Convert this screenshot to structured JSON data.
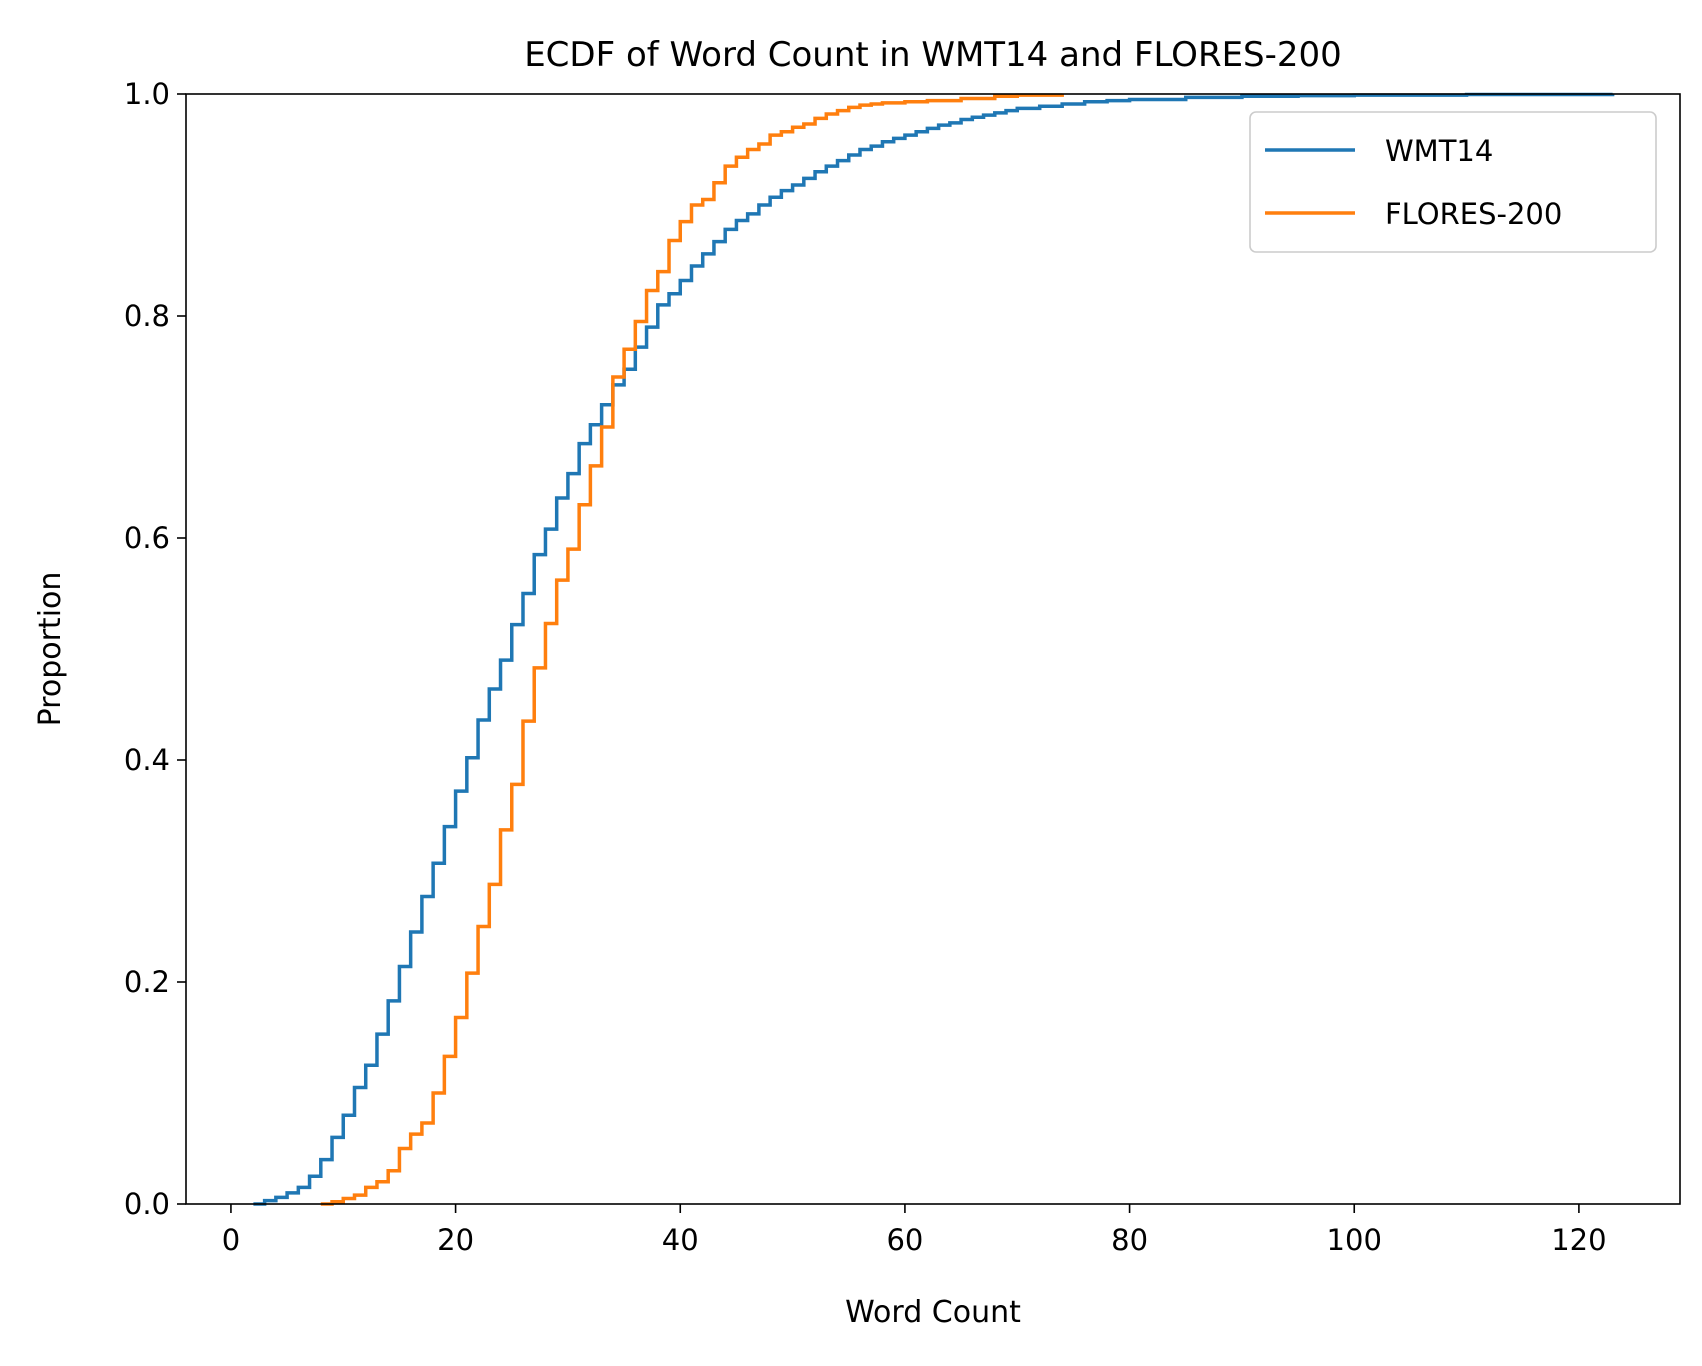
{
  "chart_data": {
    "type": "line",
    "title": "ECDF of Word Count in WMT14 and FLORES-200",
    "xlabel": "Word Count",
    "ylabel": "Proportion",
    "xlim": [
      -4,
      129
    ],
    "ylim": [
      0,
      1
    ],
    "xticks": [
      0,
      20,
      40,
      60,
      80,
      100,
      120
    ],
    "xtick_labels": [
      "0",
      "20",
      "40",
      "60",
      "80",
      "100",
      "120"
    ],
    "yticks": [
      0,
      0.2,
      0.4,
      0.6,
      0.8,
      1.0
    ],
    "ytick_labels": [
      "0.0",
      "0.2",
      "0.4",
      "0.6",
      "0.8",
      "1.0"
    ],
    "grid": false,
    "legend_position": "top-right",
    "series": [
      {
        "name": "WMT14",
        "color": "#1f77b4",
        "step": "post",
        "x": [
          2,
          3,
          4,
          5,
          6,
          7,
          8,
          9,
          10,
          11,
          12,
          13,
          14,
          15,
          16,
          17,
          18,
          19,
          20,
          21,
          22,
          23,
          24,
          25,
          26,
          27,
          28,
          29,
          30,
          31,
          32,
          33,
          34,
          35,
          36,
          37,
          38,
          39,
          40,
          41,
          42,
          43,
          44,
          45,
          46,
          47,
          48,
          49,
          50,
          51,
          52,
          53,
          54,
          55,
          56,
          57,
          58,
          59,
          60,
          61,
          62,
          63,
          64,
          65,
          66,
          67,
          68,
          69,
          70,
          72,
          74,
          76,
          78,
          80,
          85,
          90,
          95,
          100,
          110,
          123
        ],
        "y": [
          0.0,
          0.003,
          0.006,
          0.01,
          0.015,
          0.025,
          0.04,
          0.06,
          0.08,
          0.105,
          0.125,
          0.153,
          0.183,
          0.214,
          0.245,
          0.277,
          0.307,
          0.34,
          0.372,
          0.402,
          0.436,
          0.464,
          0.49,
          0.522,
          0.55,
          0.585,
          0.608,
          0.636,
          0.658,
          0.685,
          0.702,
          0.72,
          0.738,
          0.752,
          0.772,
          0.79,
          0.81,
          0.82,
          0.832,
          0.845,
          0.856,
          0.867,
          0.878,
          0.886,
          0.892,
          0.9,
          0.907,
          0.913,
          0.918,
          0.924,
          0.93,
          0.935,
          0.94,
          0.945,
          0.95,
          0.953,
          0.957,
          0.96,
          0.963,
          0.966,
          0.969,
          0.972,
          0.974,
          0.977,
          0.979,
          0.981,
          0.983,
          0.985,
          0.987,
          0.989,
          0.991,
          0.993,
          0.994,
          0.995,
          0.997,
          0.998,
          0.9985,
          0.999,
          0.9995,
          1.0
        ]
      },
      {
        "name": "FLORES-200",
        "color": "#ff7f0e",
        "step": "post",
        "x": [
          8,
          9,
          10,
          11,
          12,
          13,
          14,
          15,
          16,
          17,
          18,
          19,
          20,
          21,
          22,
          23,
          24,
          25,
          26,
          27,
          28,
          29,
          30,
          31,
          32,
          33,
          34,
          35,
          36,
          37,
          38,
          39,
          40,
          41,
          42,
          43,
          44,
          45,
          46,
          47,
          48,
          49,
          50,
          51,
          52,
          53,
          54,
          55,
          56,
          57,
          58,
          60,
          62,
          65,
          68,
          70,
          74
        ],
        "y": [
          0.0,
          0.002,
          0.005,
          0.008,
          0.015,
          0.02,
          0.03,
          0.05,
          0.063,
          0.073,
          0.1,
          0.133,
          0.168,
          0.208,
          0.25,
          0.288,
          0.337,
          0.378,
          0.435,
          0.483,
          0.523,
          0.562,
          0.59,
          0.63,
          0.665,
          0.7,
          0.745,
          0.77,
          0.795,
          0.823,
          0.84,
          0.868,
          0.885,
          0.9,
          0.905,
          0.92,
          0.935,
          0.943,
          0.95,
          0.955,
          0.963,
          0.966,
          0.97,
          0.973,
          0.978,
          0.982,
          0.985,
          0.988,
          0.99,
          0.991,
          0.992,
          0.993,
          0.994,
          0.996,
          0.998,
          0.999,
          1.0
        ]
      }
    ]
  }
}
